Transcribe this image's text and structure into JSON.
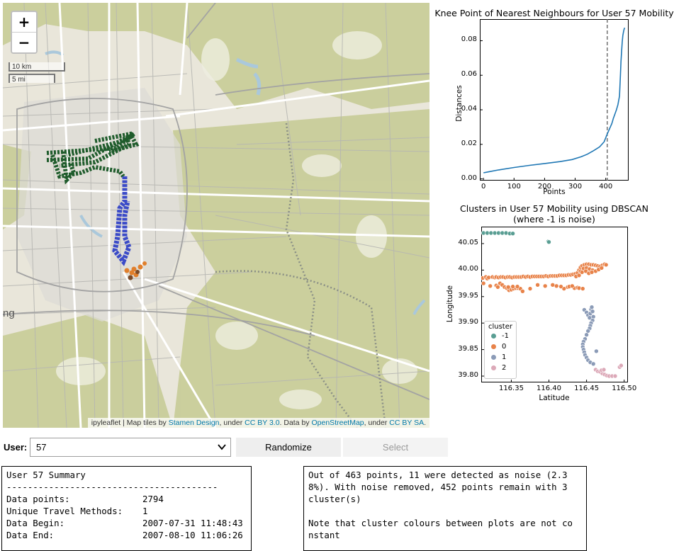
{
  "map": {
    "zoom_in": "+",
    "zoom_out": "−",
    "scale_km": "10 km",
    "scale_mi": "5 mi",
    "edge_text": "ng",
    "attribution": {
      "prefix": "ipyleaflet | Map tiles by ",
      "stamen": "Stamen Design",
      "mid1": ", under ",
      "ccby": "CC BY 3.0",
      "mid2": ". Data by ",
      "osm": "OpenStreetMap",
      "mid3": ", under ",
      "ccbysa": "CC BY SA",
      "suffix": "."
    },
    "colors": {
      "water": "#aac8db",
      "park": "#c9cd9a",
      "green_track": "#1f5c2c",
      "blue_track": "#3b4bc8",
      "orange_track": "#e07f2c"
    }
  },
  "knee_chart": {
    "chart_data": {
      "type": "line",
      "title": "Knee Point of Nearest Neighbours for User 57 Mobility",
      "xlabel": "Points",
      "ylabel": "Distances",
      "xlim": [
        -12,
        475
      ],
      "ylim": [
        -0.001,
        0.0925
      ],
      "xticks": [
        "0",
        "100",
        "200",
        "300",
        "400"
      ],
      "yticks": [
        "0.00",
        "0.02",
        "0.04",
        "0.06",
        "0.08"
      ],
      "knee_x": 405,
      "line_color": "#1f77b4",
      "x": [
        0,
        20,
        50,
        100,
        150,
        200,
        250,
        290,
        320,
        340,
        360,
        380,
        395,
        405,
        415,
        420,
        425,
        430,
        435,
        440,
        445,
        448,
        450,
        452,
        454,
        456,
        458,
        460,
        462
      ],
      "y": [
        0.0035,
        0.0042,
        0.0052,
        0.0066,
        0.0078,
        0.0089,
        0.01,
        0.0112,
        0.0128,
        0.0143,
        0.0163,
        0.0185,
        0.0215,
        0.026,
        0.03,
        0.032,
        0.035,
        0.0375,
        0.04,
        0.043,
        0.048,
        0.06,
        0.068,
        0.074,
        0.079,
        0.083,
        0.085,
        0.0865,
        0.0875
      ]
    }
  },
  "cluster_chart": {
    "chart_data": {
      "type": "scatter",
      "title": "Clusters in User 57 Mobility using DBSCAN",
      "subtitle": "(where -1 is noise)",
      "xlabel": "Latitude",
      "ylabel": "Longitude",
      "xlim": [
        116.31,
        116.505
      ],
      "ylim": [
        39.788,
        40.082
      ],
      "xticks": [
        "116.35",
        "116.40",
        "116.45",
        "116.50"
      ],
      "yticks": [
        "39.80",
        "39.85",
        "39.90",
        "39.95",
        "40.00",
        "40.05"
      ],
      "legend_title": "cluster",
      "legend_position": "lower-left",
      "series": [
        {
          "name": "-1",
          "color": "#5a9e93",
          "points": [
            [
              116.313,
              40.07
            ],
            [
              116.318,
              40.07
            ],
            [
              116.323,
              40.07
            ],
            [
              116.328,
              40.07
            ],
            [
              116.333,
              40.07
            ],
            [
              116.338,
              40.07
            ],
            [
              116.343,
              40.07
            ],
            [
              116.348,
              40.069
            ],
            [
              116.352,
              40.069
            ],
            [
              116.399,
              40.054
            ],
            [
              116.4,
              40.053
            ]
          ]
        },
        {
          "name": "0",
          "color": "#e8834a",
          "points": [
            [
              116.312,
              39.985
            ],
            [
              116.313,
              39.975
            ],
            [
              116.316,
              39.987
            ],
            [
              116.318,
              39.984
            ],
            [
              116.32,
              39.986
            ],
            [
              116.322,
              39.97
            ],
            [
              116.325,
              39.987
            ],
            [
              116.328,
              39.986
            ],
            [
              116.33,
              39.987
            ],
            [
              116.333,
              39.986
            ],
            [
              116.336,
              39.987
            ],
            [
              116.339,
              39.987
            ],
            [
              116.342,
              39.986
            ],
            [
              116.345,
              39.987
            ],
            [
              116.348,
              39.987
            ],
            [
              116.351,
              39.986
            ],
            [
              116.354,
              39.987
            ],
            [
              116.357,
              39.987
            ],
            [
              116.36,
              39.987
            ],
            [
              116.363,
              39.987
            ],
            [
              116.366,
              39.988
            ],
            [
              116.369,
              39.987
            ],
            [
              116.372,
              39.988
            ],
            [
              116.375,
              39.987
            ],
            [
              116.378,
              39.988
            ],
            [
              116.381,
              39.988
            ],
            [
              116.384,
              39.988
            ],
            [
              116.387,
              39.988
            ],
            [
              116.39,
              39.988
            ],
            [
              116.393,
              39.988
            ],
            [
              116.396,
              39.989
            ],
            [
              116.399,
              39.988
            ],
            [
              116.402,
              39.989
            ],
            [
              116.405,
              39.989
            ],
            [
              116.408,
              39.989
            ],
            [
              116.411,
              39.989
            ],
            [
              116.414,
              39.99
            ],
            [
              116.417,
              39.99
            ],
            [
              116.42,
              39.99
            ],
            [
              116.423,
              39.99
            ],
            [
              116.426,
              39.991
            ],
            [
              116.429,
              39.991
            ],
            [
              116.432,
              39.992
            ],
            [
              116.435,
              39.993
            ],
            [
              116.438,
              39.995
            ],
            [
              116.44,
              40.0
            ],
            [
              116.442,
              40.005
            ],
            [
              116.444,
              40.008
            ],
            [
              116.447,
              40.01
            ],
            [
              116.45,
              40.011
            ],
            [
              116.453,
              40.011
            ],
            [
              116.456,
              40.01
            ],
            [
              116.459,
              40.01
            ],
            [
              116.462,
              40.009
            ],
            [
              116.465,
              40.008
            ],
            [
              116.468,
              40.007
            ],
            [
              116.471,
              40.009
            ],
            [
              116.474,
              40.011
            ],
            [
              116.476,
              40.01
            ],
            [
              116.442,
              39.998
            ],
            [
              116.446,
              40.003
            ],
            [
              116.45,
              40.004
            ],
            [
              116.454,
              40.002
            ],
            [
              116.458,
              40.0
            ],
            [
              116.462,
              39.998
            ],
            [
              116.466,
              40.001
            ],
            [
              116.47,
              40.004
            ],
            [
              116.436,
              39.988
            ],
            [
              116.44,
              39.99
            ],
            [
              116.444,
              39.996
            ],
            [
              116.449,
              39.998
            ],
            [
              116.453,
              39.994
            ],
            [
              116.457,
              39.996
            ],
            [
              116.434,
              39.966
            ],
            [
              116.438,
              39.967
            ],
            [
              116.42,
              39.965
            ],
            [
              116.425,
              39.968
            ],
            [
              116.427,
              39.969
            ],
            [
              116.431,
              39.97
            ],
            [
              116.44,
              39.966
            ],
            [
              116.445,
              39.965
            ],
            [
              116.335,
              39.975
            ],
            [
              116.338,
              39.972
            ],
            [
              116.341,
              39.968
            ],
            [
              116.344,
              39.966
            ],
            [
              116.347,
              39.962
            ],
            [
              116.35,
              39.963
            ],
            [
              116.353,
              39.965
            ],
            [
              116.356,
              39.966
            ],
            [
              116.359,
              39.966
            ],
            [
              116.362,
              39.965
            ],
            [
              116.365,
              39.96
            ],
            [
              116.375,
              39.965
            ],
            [
              116.385,
              39.972
            ],
            [
              116.395,
              39.97
            ],
            [
              116.405,
              39.972
            ],
            [
              116.41,
              39.97
            ],
            [
              116.416,
              39.969
            ],
            [
              116.33,
              39.971
            ],
            [
              116.332,
              39.968
            ],
            [
              116.346,
              39.968
            ],
            [
              116.352,
              39.969
            ],
            [
              116.358,
              39.969
            ]
          ]
        },
        {
          "name": "1",
          "color": "#8b9bb7",
          "points": [
            [
              116.447,
              39.925
            ],
            [
              116.45,
              39.92
            ],
            [
              116.452,
              39.915
            ],
            [
              116.454,
              39.91
            ],
            [
              116.455,
              39.918
            ],
            [
              116.456,
              39.926
            ],
            [
              116.457,
              39.93
            ],
            [
              116.458,
              39.922
            ],
            [
              116.459,
              39.912
            ],
            [
              116.458,
              39.905
            ],
            [
              116.456,
              39.9
            ],
            [
              116.455,
              39.895
            ],
            [
              116.454,
              39.89
            ],
            [
              116.452,
              39.885
            ],
            [
              116.45,
              39.878
            ],
            [
              116.448,
              39.87
            ],
            [
              116.446,
              39.865
            ],
            [
              116.445,
              39.86
            ],
            [
              116.445,
              39.855
            ],
            [
              116.446,
              39.85
            ],
            [
              116.447,
              39.845
            ],
            [
              116.448,
              39.84
            ],
            [
              116.45,
              39.835
            ],
            [
              116.452,
              39.83
            ],
            [
              116.455,
              39.826
            ],
            [
              116.459,
              39.823
            ],
            [
              116.463,
              39.847
            ]
          ]
        },
        {
          "name": "2",
          "color": "#dca9b8",
          "points": [
            [
              116.462,
              39.812
            ],
            [
              116.465,
              39.809
            ],
            [
              116.468,
              39.808
            ],
            [
              116.471,
              39.805
            ],
            [
              116.474,
              39.803
            ],
            [
              116.477,
              39.801
            ],
            [
              116.48,
              39.8
            ],
            [
              116.484,
              39.8
            ],
            [
              116.488,
              39.8
            ],
            [
              116.494,
              39.817
            ],
            [
              116.496,
              39.82
            ],
            [
              116.47,
              39.811
            ],
            [
              116.473,
              39.812
            ]
          ]
        }
      ]
    }
  },
  "controls": {
    "user_label": "User:",
    "user_value": "57",
    "randomize_label": "Randomize",
    "select_label": "Select"
  },
  "summary": {
    "title": "User 57 Summary",
    "divider": "----------------------------------------",
    "rows": [
      {
        "label": "Data points:",
        "value": "2794"
      },
      {
        "label": "Unique Travel Methods:",
        "value": "1"
      },
      {
        "label": "Data Begin:",
        "value": "2007-07-31 11:48:43"
      },
      {
        "label": "Data End:",
        "value": "2007-08-10 11:06:26"
      }
    ]
  },
  "dbscan_info": {
    "line1": "Out of 463 points, 11 were detected as noise (2.3",
    "line2": "8%). With noise removed, 452 points remain with 3",
    "line3": "cluster(s)",
    "line4": "",
    "line5": "Note that cluster colours between plots are not co",
    "line6": "nstant"
  }
}
